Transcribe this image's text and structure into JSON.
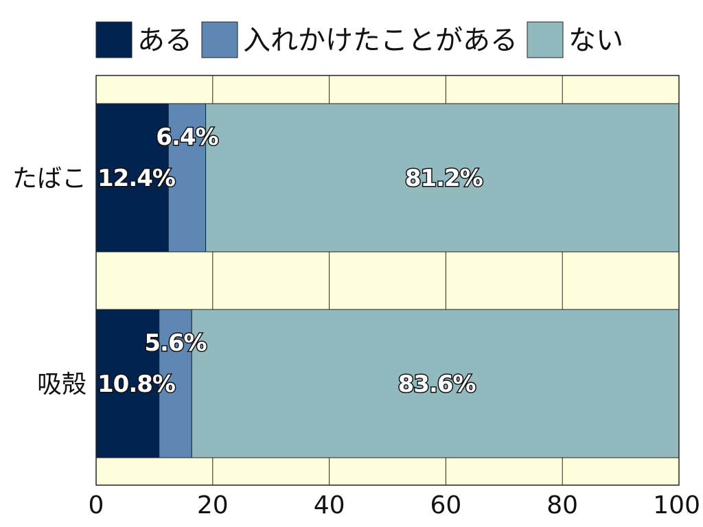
{
  "chart_data": {
    "type": "bar",
    "orientation": "horizontal",
    "stacked": true,
    "categories": [
      "たばこ",
      "吸殻"
    ],
    "series": [
      {
        "name": "ある",
        "color": "#02234f",
        "values": [
          12.4,
          10.8
        ],
        "labels": [
          "12.4%",
          "10.8%"
        ]
      },
      {
        "name": "入れかけたことがある",
        "color": "#5f87b4",
        "values": [
          6.4,
          5.6
        ],
        "labels": [
          "6.4%",
          "5.6%"
        ]
      },
      {
        "name": "ない",
        "color": "#92b9be",
        "values": [
          81.2,
          83.6
        ],
        "labels": [
          "81.2%",
          "83.6%"
        ]
      }
    ],
    "xlim": [
      0,
      100
    ],
    "xticks": [
      "0",
      "20",
      "40",
      "60",
      "80",
      "100"
    ],
    "grid": true,
    "plot_background": "#ffffdd",
    "legend_position": "top"
  }
}
